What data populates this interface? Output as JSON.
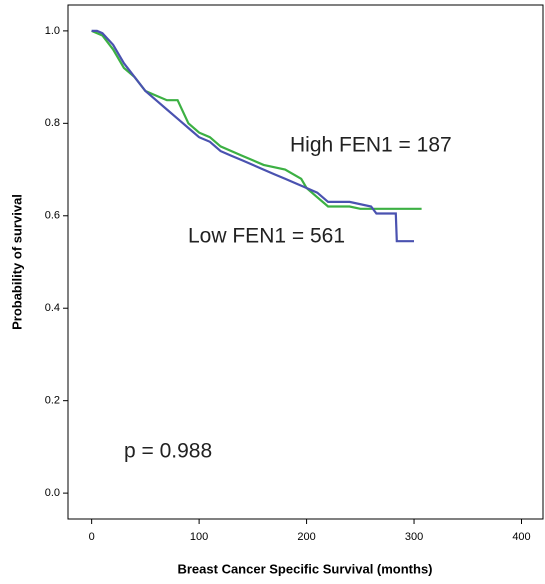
{
  "chart_data": {
    "type": "line",
    "xlabel": "Breast Cancer Specific Survival (months)",
    "ylabel": "Probability of survival",
    "annotations": [
      "p = 0.988"
    ],
    "xlim": [
      -22,
      420
    ],
    "xticks": [
      0,
      100,
      200,
      300,
      400
    ],
    "ylim": [
      -0.056,
      1.056
    ],
    "yticks": [
      {
        "value": 0,
        "label": "0.0"
      },
      0.2,
      0.4,
      0.6,
      0.8,
      {
        "value": 1,
        "label": "1.0"
      }
    ],
    "series": [
      {
        "name": "High FEN1 = 187",
        "color": "#3cb043",
        "x": [
          0,
          10,
          20,
          30,
          40,
          50,
          60,
          70,
          80,
          90,
          100,
          110,
          120,
          140,
          160,
          180,
          195,
          200,
          210,
          220,
          240,
          250,
          307
        ],
        "values": [
          1.0,
          0.99,
          0.96,
          0.92,
          0.9,
          0.87,
          0.86,
          0.85,
          0.85,
          0.8,
          0.78,
          0.77,
          0.75,
          0.73,
          0.71,
          0.7,
          0.68,
          0.66,
          0.64,
          0.62,
          0.62,
          0.615,
          0.615
        ]
      },
      {
        "name": "Low FEN1 = 561",
        "color": "#4a52b0",
        "x": [
          0,
          5,
          10,
          20,
          30,
          40,
          50,
          60,
          70,
          80,
          90,
          100,
          110,
          120,
          130,
          140,
          150,
          160,
          170,
          180,
          190,
          200,
          210,
          220,
          240,
          260,
          265,
          283,
          284,
          300
        ],
        "values": [
          1.0,
          1.0,
          0.995,
          0.97,
          0.93,
          0.9,
          0.87,
          0.85,
          0.83,
          0.81,
          0.79,
          0.77,
          0.76,
          0.74,
          0.73,
          0.72,
          0.71,
          0.7,
          0.69,
          0.68,
          0.67,
          0.66,
          0.65,
          0.63,
          0.63,
          0.62,
          0.605,
          0.605,
          0.545,
          0.545
        ]
      }
    ]
  }
}
